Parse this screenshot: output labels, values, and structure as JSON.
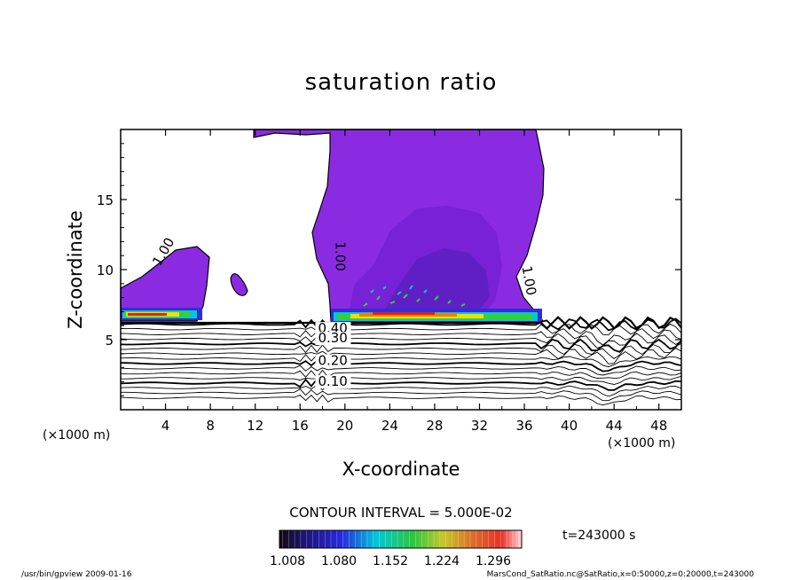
{
  "chart_data": {
    "type": "heatmap",
    "title": "saturation ratio",
    "xlabel": "X-coordinate",
    "ylabel": "Z-coordinate",
    "x_unit_left": "(×1000 m)",
    "x_unit_right": "(×1000 m)",
    "xlim": [
      0,
      50
    ],
    "ylim": [
      0,
      20
    ],
    "x_ticks": [
      4,
      8,
      12,
      16,
      20,
      24,
      28,
      32,
      36,
      40,
      44,
      48
    ],
    "y_ticks": [
      5,
      10,
      15
    ],
    "contour_labels": [
      {
        "text": "1.00",
        "x": 3.5,
        "z": 10.2,
        "angle": -60
      },
      {
        "text": "1.00",
        "x": 19.2,
        "z": 12.0,
        "angle": 90
      },
      {
        "text": "1.00",
        "x": 35.8,
        "z": 10.2,
        "angle": 80
      },
      {
        "text": "0.40",
        "x": 17.6,
        "z": 5.5,
        "angle": 0
      },
      {
        "text": "0.30",
        "x": 17.6,
        "z": 4.8,
        "angle": 0
      },
      {
        "text": "0.20",
        "x": 17.6,
        "z": 3.2,
        "angle": 0
      },
      {
        "text": "0.10",
        "x": 17.6,
        "z": 1.7,
        "angle": 0
      }
    ],
    "contour_interval_text": "CONTOUR INTERVAL = 5.000E-02",
    "time_text": "t=243000 s",
    "colorbar": {
      "min": 1.0,
      "max": 1.33,
      "tick_labels": [
        "1.008",
        "1.080",
        "1.152",
        "1.224",
        "1.296"
      ]
    },
    "footer_left": "/usr/bin/gpview   2009-01-16",
    "footer_right": "MarsCond_SatRatio.nc@SatRatio,x=0:50000,z=0:20000,t=243000",
    "colors": {
      "purple": "#8a2be2",
      "deep_purple": "#7b1fd1",
      "blue_violet": "#5a1fc0",
      "blue": "#3030d0",
      "cyan": "#00c8d8",
      "green": "#30d040",
      "yellow": "#f0e000",
      "orange": "#f08000",
      "red": "#e02020",
      "black": "#000000"
    }
  }
}
